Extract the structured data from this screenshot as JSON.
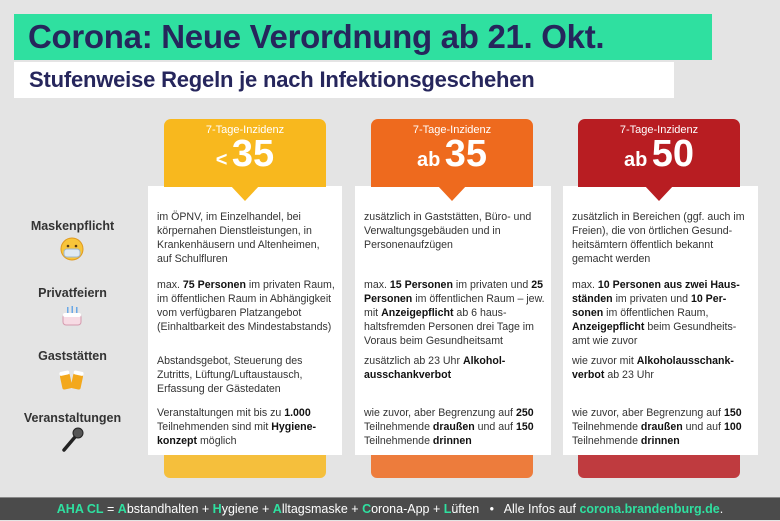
{
  "title": "Corona: Neue Verordnung ab 21. Okt.",
  "subtitle": "Stufenweise Regeln je nach Infektionsgeschehen",
  "colors": {
    "green": "#2fe0a0",
    "navy": "#26265c",
    "yellow": "#f8b81e",
    "orange": "#ee6a1e",
    "red": "#b81d22"
  },
  "rows": [
    {
      "label": "Maskenpflicht",
      "icon": "face-with-mask-icon"
    },
    {
      "label": "Privatfeiern",
      "icon": "birthday-cake-icon"
    },
    {
      "label": "Gaststätten",
      "icon": "beer-mugs-icon"
    },
    {
      "label": "Veranstaltungen",
      "icon": "microphone-icon"
    }
  ],
  "columns": [
    {
      "label": "7-Tage-Inzidenz",
      "prefix": "<",
      "value": "35",
      "color": "#f8b81e",
      "cells": [
        [
          [
            "im ÖPNV, im Einzelhandel, bei körpernahen Dienstleistungen, in Krankenhäusern und Altenheimen, auf Schulfluren",
            0
          ]
        ],
        [
          [
            "max. ",
            0
          ],
          [
            "75 Personen",
            1
          ],
          [
            " im privaten Raum, im öffentlichen Raum in Abhängigkeit vom verfügbaren Platzangebot (Einhaltbarkeit des Mindestabstands)",
            0
          ]
        ],
        [
          [
            "Abstandsgebot, Steuerung des Zutritts, Lüftung/Luftaustausch, Erfassung der Gästedaten",
            0
          ]
        ],
        [
          [
            "Veranstaltungen mit bis zu ",
            0
          ],
          [
            "1.000",
            1
          ],
          [
            " Teilnehmenden sind mit ",
            0
          ],
          [
            "Hygiene-konzept",
            1
          ],
          [
            " möglich",
            0
          ]
        ]
      ]
    },
    {
      "label": "7-Tage-Inzidenz",
      "prefix": "ab",
      "value": "35",
      "color": "#ee6a1e",
      "cells": [
        [
          [
            "zusätzlich in Gaststätten, Büro- und Verwaltungsgebäuden und in Personenaufzügen",
            0
          ]
        ],
        [
          [
            "max. ",
            0
          ],
          [
            "15 Personen",
            1
          ],
          [
            " im privaten und ",
            0
          ],
          [
            "25 Personen",
            1
          ],
          [
            " im öffentlichen Raum – jew. mit ",
            0
          ],
          [
            "Anzeigepflicht",
            1
          ],
          [
            " ab 6 haus-haltsfremden Personen drei Tage im Voraus beim Gesundheitsamt",
            0
          ]
        ],
        [
          [
            "zusätzlich ab 23 Uhr ",
            0
          ],
          [
            "Alkohol-ausschankverbot",
            1
          ]
        ],
        [
          [
            "wie zuvor, aber Begrenzung auf ",
            0
          ],
          [
            "250",
            1
          ],
          [
            " Teilnehmende ",
            0
          ],
          [
            "draußen",
            1
          ],
          [
            " und auf ",
            0
          ],
          [
            "150",
            1
          ],
          [
            " Teilnehmende ",
            0
          ],
          [
            "drinnen",
            1
          ]
        ]
      ]
    },
    {
      "label": "7-Tage-Inzidenz",
      "prefix": "ab",
      "value": "50",
      "color": "#b81d22",
      "cells": [
        [
          [
            "zusätzlich in Bereichen (ggf. auch im Freien), die von örtlichen Gesund-heitsämtern öffentlich bekannt gemacht werden",
            0
          ]
        ],
        [
          [
            "max. ",
            0
          ],
          [
            "10 Personen aus zwei Haus-ständen",
            1
          ],
          [
            " im privaten und ",
            0
          ],
          [
            "10 Per-sonen",
            1
          ],
          [
            " im öffentlichen Raum, ",
            0
          ],
          [
            "Anzeigepflicht",
            1
          ],
          [
            " beim Gesundheits-amt wie zuvor",
            0
          ]
        ],
        [
          [
            "wie zuvor mit ",
            0
          ],
          [
            "Alkoholausschank-verbot",
            1
          ],
          [
            " ab 23 Uhr",
            0
          ]
        ],
        [
          [
            "wie zuvor, aber Begrenzung auf ",
            0
          ],
          [
            "150",
            1
          ],
          [
            " Teilnehmende ",
            0
          ],
          [
            "draußen",
            1
          ],
          [
            " und auf ",
            0
          ],
          [
            "100",
            1
          ],
          [
            " Teilnehmende ",
            0
          ],
          [
            "drinnen",
            1
          ]
        ]
      ]
    }
  ],
  "footer": {
    "parts": [
      [
        "AHA CL",
        1
      ],
      [
        " = ",
        0
      ],
      [
        "A",
        1
      ],
      [
        "bstandhalten + ",
        0
      ],
      [
        "H",
        1
      ],
      [
        "ygiene + ",
        0
      ],
      [
        "A",
        1
      ],
      [
        "lltagsmaske + ",
        0
      ],
      [
        "C",
        1
      ],
      [
        "orona-App + ",
        0
      ],
      [
        "L",
        1
      ],
      [
        "üften",
        0
      ],
      [
        "   •   Alle Infos auf ",
        0
      ],
      [
        "corona.brandenburg.de",
        1
      ],
      [
        ".",
        0
      ]
    ]
  }
}
